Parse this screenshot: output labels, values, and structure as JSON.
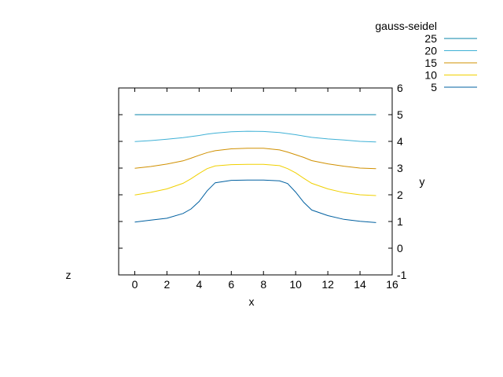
{
  "chart_data": {
    "type": "line",
    "xlabel": "x",
    "ylabel": "y",
    "zlabel": "z",
    "xlim": [
      -1,
      16
    ],
    "ylim": [
      -1,
      6
    ],
    "xticks": [
      "0",
      "2",
      "4",
      "6",
      "8",
      "10",
      "12",
      "14",
      "16"
    ],
    "yticks": [
      "-1",
      "0",
      "1",
      "2",
      "3",
      "4",
      "5",
      "6"
    ],
    "legend": {
      "title": "gauss-seidel",
      "placement": "top-right"
    },
    "x": [
      0,
      1,
      2,
      3,
      3.5,
      4,
      4.5,
      5,
      6,
      7,
      8,
      9,
      9.5,
      10,
      10.5,
      11,
      12,
      13,
      14,
      15
    ],
    "series": [
      {
        "name": "25",
        "color": "#0a84a8",
        "values": [
          5.0,
          5.0,
          5.0,
          5.0,
          5.0,
          5.0,
          5.0,
          5.0,
          5.0,
          5.0,
          5.0,
          5.0,
          5.0,
          5.0,
          5.0,
          5.0,
          5.0,
          5.0,
          5.0,
          5.0
        ]
      },
      {
        "name": "20",
        "color": "#3fb1d6",
        "values": [
          3.99,
          4.03,
          4.08,
          4.14,
          4.18,
          4.22,
          4.27,
          4.31,
          4.36,
          4.38,
          4.37,
          4.33,
          4.29,
          4.25,
          4.2,
          4.15,
          4.09,
          4.05,
          4.0,
          3.98
        ]
      },
      {
        "name": "15",
        "color": "#d09000",
        "values": [
          2.99,
          3.06,
          3.15,
          3.27,
          3.37,
          3.48,
          3.58,
          3.65,
          3.72,
          3.74,
          3.74,
          3.68,
          3.6,
          3.5,
          3.4,
          3.28,
          3.16,
          3.07,
          3.0,
          2.98
        ]
      },
      {
        "name": "10",
        "color": "#f0d000",
        "values": [
          1.99,
          2.09,
          2.22,
          2.43,
          2.6,
          2.8,
          2.98,
          3.08,
          3.13,
          3.14,
          3.14,
          3.09,
          2.98,
          2.82,
          2.62,
          2.43,
          2.22,
          2.08,
          2.0,
          1.97
        ]
      },
      {
        "name": "5",
        "color": "#0060a0",
        "values": [
          0.98,
          1.05,
          1.12,
          1.3,
          1.47,
          1.75,
          2.15,
          2.45,
          2.54,
          2.55,
          2.55,
          2.52,
          2.42,
          2.1,
          1.72,
          1.43,
          1.22,
          1.08,
          1.01,
          0.96
        ]
      }
    ]
  }
}
